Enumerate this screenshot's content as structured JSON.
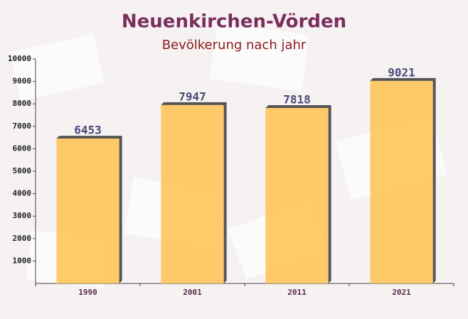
{
  "chart_data": {
    "type": "bar",
    "title": "Neuenkirchen-Vörden",
    "subtitle": "Bevölkerung nach jahr",
    "categories": [
      "1990",
      "2001",
      "2011",
      "2021"
    ],
    "values": [
      6453,
      7947,
      7818,
      9021
    ],
    "color": "#ffc55a",
    "ylim": [
      0,
      10000
    ],
    "yticks": [
      1000,
      2000,
      3000,
      4000,
      5000,
      6000,
      7000,
      8000,
      9000,
      10000
    ],
    "grid": false
  }
}
